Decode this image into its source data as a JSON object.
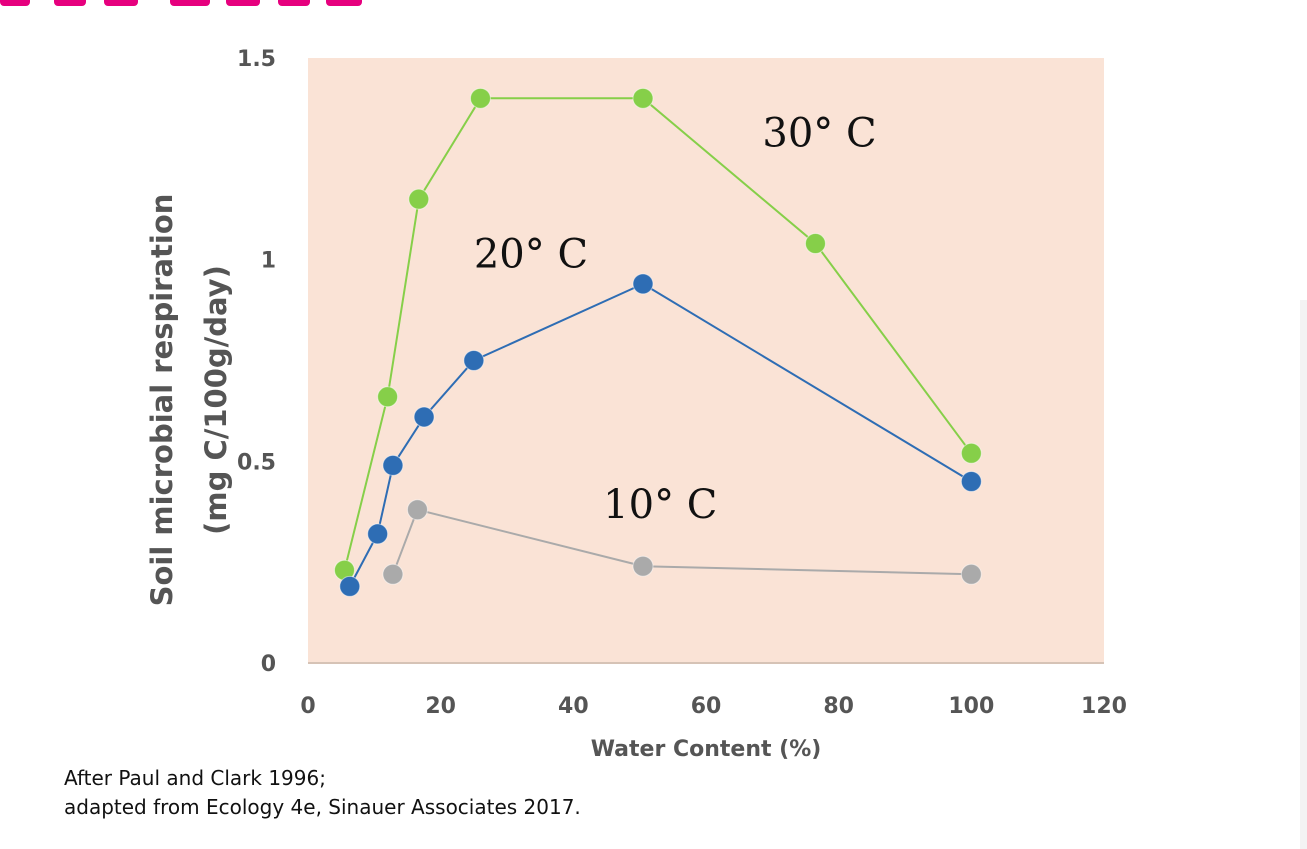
{
  "colors": {
    "plot_background": "#fae3d6",
    "series_30": "#86cf49",
    "series_20": "#2e6db4",
    "series_10": "#aaaaaa",
    "accent": "#e6007e"
  },
  "chart_data": {
    "type": "line",
    "xlabel": "Water Content (%)",
    "ylabel_lines": [
      "Soil microbial respiration",
      "(mg C/100g/day)"
    ],
    "xlim": [
      0,
      120
    ],
    "ylim": [
      0,
      1.5
    ],
    "x_ticks": [
      "0",
      "20",
      "40",
      "60",
      "80",
      "100",
      "120"
    ],
    "y_ticks": [
      "0",
      "0.5",
      "1",
      "1.5"
    ],
    "grid": false,
    "series": [
      {
        "name": "30° C",
        "color": "#86cf49",
        "points": [
          [
            5.5,
            0.23
          ],
          [
            12,
            0.66
          ],
          [
            16.7,
            1.15
          ],
          [
            26,
            1.4
          ],
          [
            50.5,
            1.4
          ],
          [
            76.5,
            1.04
          ],
          [
            100,
            0.52
          ]
        ]
      },
      {
        "name": "20° C",
        "color": "#2e6db4",
        "points": [
          [
            6.3,
            0.19
          ],
          [
            10.5,
            0.32
          ],
          [
            12.8,
            0.49
          ],
          [
            17.5,
            0.61
          ],
          [
            25,
            0.75
          ],
          [
            50.5,
            0.94
          ],
          [
            100,
            0.45
          ]
        ]
      },
      {
        "name": "10° C",
        "color": "#aaaaaa",
        "points": [
          [
            12.8,
            0.22
          ],
          [
            16.5,
            0.38
          ],
          [
            50.5,
            0.24
          ],
          [
            100,
            0.22
          ]
        ]
      }
    ],
    "series_label_positions": [
      [
        68.5,
        1.28
      ],
      [
        25,
        0.98
      ],
      [
        44.5,
        0.36
      ]
    ]
  },
  "caption": {
    "line1": "After Paul and Clark 1996;",
    "line2": "adapted from Ecology 4e, Sinauer Associates 2017."
  }
}
